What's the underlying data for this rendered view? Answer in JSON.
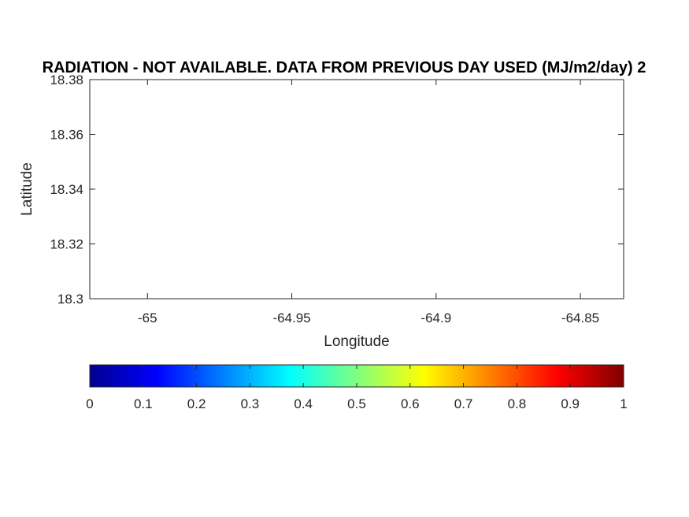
{
  "chart_data": {
    "type": "heatmap",
    "title": "RADIATION - NOT AVAILABLE.  DATA FROM PREVIOUS DAY USED (MJ/m2/day) 2",
    "xlabel": "Longitude",
    "ylabel": "Latitude",
    "xlim": [
      -65.02,
      -64.835
    ],
    "ylim": [
      18.3,
      18.38
    ],
    "x_ticks": [
      -65,
      -64.95,
      -64.9,
      -64.85
    ],
    "x_tick_labels": [
      "-65",
      "-64.95",
      "-64.9",
      "-64.85"
    ],
    "y_ticks": [
      18.3,
      18.32,
      18.34,
      18.36,
      18.38
    ],
    "y_tick_labels": [
      "18.3",
      "18.32",
      "18.34",
      "18.36",
      "18.38"
    ],
    "grid": false,
    "values": [],
    "colorbar": {
      "orientation": "horizontal",
      "location": "below",
      "colormap": "jet",
      "range": [
        0,
        1
      ],
      "ticks": [
        0,
        0.1,
        0.2,
        0.3,
        0.4,
        0.5,
        0.6,
        0.7,
        0.8,
        0.9,
        1
      ],
      "tick_labels": [
        "0",
        "0.1",
        "0.2",
        "0.3",
        "0.4",
        "0.5",
        "0.6",
        "0.7",
        "0.8",
        "0.9",
        "1"
      ],
      "colors": [
        "#00008f",
        "#0000ff",
        "#0080ff",
        "#00ffff",
        "#80ff80",
        "#ffff00",
        "#ff8000",
        "#ff0000",
        "#800000"
      ]
    }
  }
}
